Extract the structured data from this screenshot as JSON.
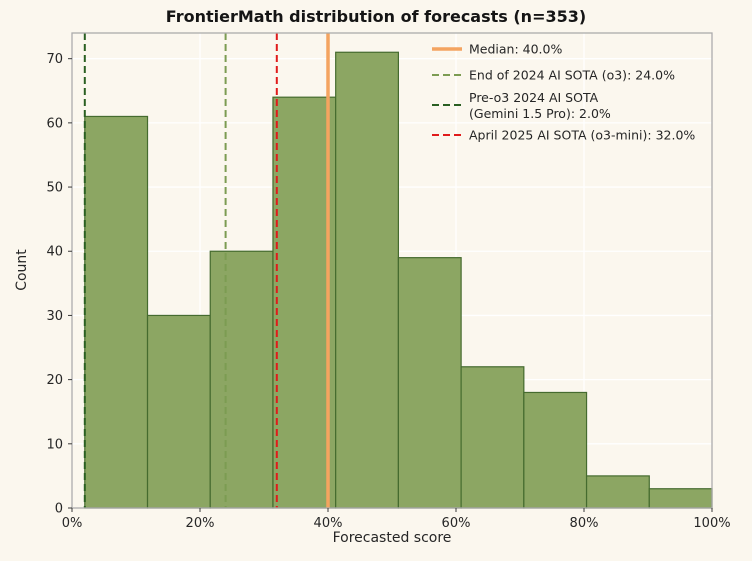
{
  "chart_data": {
    "type": "bar",
    "subtype": "histogram",
    "title": "FrontierMath distribution of forecasts (n=353)",
    "xlabel": "Forecasted score",
    "ylabel": "Count",
    "n": 353,
    "bin_edges": [
      2,
      11.8,
      21.6,
      31.4,
      41.2,
      51.0,
      60.8,
      70.6,
      80.4,
      90.2,
      100
    ],
    "values": [
      61,
      30,
      40,
      64,
      71,
      39,
      22,
      18,
      5,
      3
    ],
    "xlim": [
      0,
      100
    ],
    "ylim": [
      0,
      74
    ],
    "xticks": [
      {
        "value": 0,
        "label": "0%"
      },
      {
        "value": 20,
        "label": "20%"
      },
      {
        "value": 40,
        "label": "40%"
      },
      {
        "value": 60,
        "label": "60%"
      },
      {
        "value": 80,
        "label": "80%"
      },
      {
        "value": 100,
        "label": "100%"
      }
    ],
    "yticks": [
      0,
      10,
      20,
      30,
      40,
      50,
      60,
      70
    ],
    "grid": true,
    "legend_position": "upper right",
    "vlines": [
      {
        "name": "median-line",
        "value": 40.0,
        "label": "Median: 40.0%",
        "color": "#f4a460",
        "style": "solid",
        "width": 3.5
      },
      {
        "name": "o3-sota-line",
        "value": 24.0,
        "label": "End of 2024 AI SOTA (o3): 24.0%",
        "color": "#7c9c52",
        "style": "dashed",
        "width": 2
      },
      {
        "name": "pre-o3-sota-line",
        "value": 2.0,
        "label": "Pre-o3 2024 AI SOTA\n(Gemini 1.5 Pro): 2.0%",
        "color": "#2a5f22",
        "style": "dashed",
        "width": 2
      },
      {
        "name": "april-2025-sota-line",
        "value": 32.0,
        "label": "April 2025 AI SOTA (o3-mini): 32.0%",
        "color": "#e01b1b",
        "style": "dashed",
        "width": 2
      }
    ],
    "colors": {
      "background": "#fbf7ee",
      "bar_fill": "#8ca663",
      "bar_edge": "#456b2f",
      "grid": "#ffffff",
      "spine": "#ababab",
      "tick": "#3a3a3a",
      "text": "#262626"
    }
  }
}
